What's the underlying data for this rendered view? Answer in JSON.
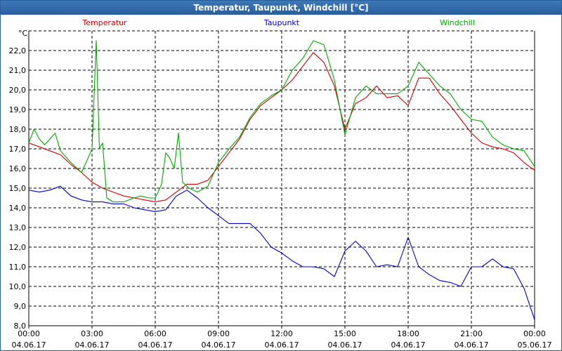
{
  "window": {
    "title": "Temperatur, Taupunkt, Windchill [°C]"
  },
  "colors": {
    "temperatur": "#cc0000",
    "taupunkt": "#0000cc",
    "windchill": "#00aa00",
    "grid": "#000000",
    "axis": "#000000"
  },
  "chart_data": {
    "type": "line",
    "title": "Temperatur, Taupunkt, Windchill [°C]",
    "ylabel": "°C",
    "ylim": [
      8,
      23
    ],
    "xlim": [
      0,
      24
    ],
    "yticks": [
      "8,0",
      "9,0",
      "10,0",
      "11,0",
      "12,0",
      "13,0",
      "14,0",
      "15,0",
      "16,0",
      "17,0",
      "18,0",
      "19,0",
      "20,0",
      "21,0",
      "22,0"
    ],
    "xticks": [
      {
        "time": "00:00",
        "date": "04.06.17"
      },
      {
        "time": "03:00",
        "date": "04.06.17"
      },
      {
        "time": "06:00",
        "date": "04.06.17"
      },
      {
        "time": "09:00",
        "date": "04.06.17"
      },
      {
        "time": "12:00",
        "date": "04.06.17"
      },
      {
        "time": "15:00",
        "date": "04.06.17"
      },
      {
        "time": "18:00",
        "date": "04.06.17"
      },
      {
        "time": "21:00",
        "date": "04.06.17"
      },
      {
        "time": "00:00",
        "date": "05.06.17"
      }
    ],
    "legend": [
      "Temperatur",
      "Taupunkt",
      "Windchill"
    ],
    "series": [
      {
        "name": "Temperatur",
        "x": [
          0,
          0.5,
          1,
          1.5,
          2,
          2.5,
          3,
          3.5,
          4,
          4.5,
          5,
          5.5,
          6,
          6.5,
          7,
          7.5,
          8,
          8.5,
          9,
          9.5,
          10,
          10.5,
          11,
          11.5,
          12,
          12.5,
          13,
          13.5,
          14,
          14.5,
          15,
          15.5,
          16,
          16.5,
          17,
          17.5,
          18,
          18.5,
          19,
          19.5,
          20,
          20.5,
          21,
          21.5,
          22,
          22.5,
          23,
          23.5,
          24
        ],
        "values": [
          17.3,
          17.1,
          16.9,
          16.7,
          16.2,
          15.8,
          15.3,
          15.0,
          14.8,
          14.6,
          14.5,
          14.4,
          14.3,
          14.4,
          14.8,
          15.2,
          15.2,
          15.4,
          16.1,
          16.8,
          17.5,
          18.5,
          19.2,
          19.6,
          20.0,
          20.5,
          21.2,
          21.9,
          21.4,
          20.2,
          18.0,
          19.3,
          19.6,
          20.2,
          19.6,
          19.7,
          19.2,
          20.6,
          20.6,
          19.8,
          19.2,
          18.5,
          17.8,
          17.3,
          17.1,
          17.0,
          16.8,
          16.3,
          15.9
        ]
      },
      {
        "name": "Taupunkt",
        "x": [
          0,
          0.5,
          1,
          1.5,
          2,
          2.5,
          3,
          3.5,
          4,
          4.5,
          5,
          5.5,
          6,
          6.5,
          7,
          7.5,
          8,
          8.5,
          9,
          9.5,
          10,
          10.5,
          11,
          11.5,
          12,
          12.5,
          13,
          13.5,
          14,
          14.5,
          15,
          15.5,
          16,
          16.5,
          17,
          17.5,
          18,
          18.5,
          19,
          19.5,
          20,
          20.5,
          21,
          21.5,
          22,
          22.5,
          23,
          23.5,
          24
        ],
        "values": [
          14.9,
          14.8,
          14.9,
          15.1,
          14.6,
          14.4,
          14.3,
          14.3,
          14.2,
          14.2,
          14.0,
          13.9,
          13.8,
          13.9,
          14.6,
          14.9,
          14.5,
          14.0,
          13.6,
          13.2,
          13.2,
          13.2,
          12.7,
          12.0,
          11.7,
          11.3,
          11.0,
          11.0,
          10.9,
          10.5,
          11.8,
          12.3,
          11.8,
          11.0,
          11.1,
          11.0,
          12.5,
          11.0,
          10.6,
          10.3,
          10.2,
          10.0,
          11.0,
          11.0,
          11.4,
          11.0,
          10.9,
          9.9,
          8.3
        ]
      },
      {
        "name": "Windchill",
        "x": [
          0,
          0.25,
          0.5,
          0.75,
          1,
          1.25,
          1.5,
          2,
          2.5,
          2.8,
          3,
          3.2,
          3.35,
          3.5,
          3.7,
          4,
          4.5,
          5,
          5.3,
          5.7,
          6,
          6.3,
          6.5,
          6.7,
          6.9,
          7.1,
          7.3,
          7.6,
          8,
          8.5,
          9,
          9.5,
          10,
          10.5,
          11,
          11.5,
          12,
          12.5,
          13,
          13.5,
          14,
          14.5,
          15,
          15.5,
          16,
          16.5,
          17,
          17.5,
          18,
          18.5,
          19,
          19.5,
          20,
          20.5,
          21,
          21.5,
          22,
          22.5,
          23,
          23.5,
          24
        ],
        "values": [
          17.3,
          18.0,
          17.5,
          17.2,
          17.5,
          17.8,
          16.9,
          16.3,
          15.8,
          16.5,
          17.0,
          22.5,
          17.0,
          17.3,
          14.5,
          14.3,
          14.3,
          14.5,
          14.6,
          14.5,
          14.5,
          15.2,
          16.8,
          16.5,
          16.0,
          17.8,
          15.3,
          15.0,
          14.8,
          15.1,
          16.3,
          17.0,
          17.6,
          18.6,
          19.3,
          19.7,
          20.0,
          21.0,
          21.6,
          22.5,
          22.3,
          20.5,
          17.7,
          19.6,
          20.2,
          19.8,
          19.8,
          19.8,
          20.2,
          21.4,
          20.8,
          20.2,
          19.8,
          19.0,
          18.5,
          18.4,
          17.6,
          17.2,
          17.0,
          16.9,
          16.1
        ]
      }
    ]
  }
}
